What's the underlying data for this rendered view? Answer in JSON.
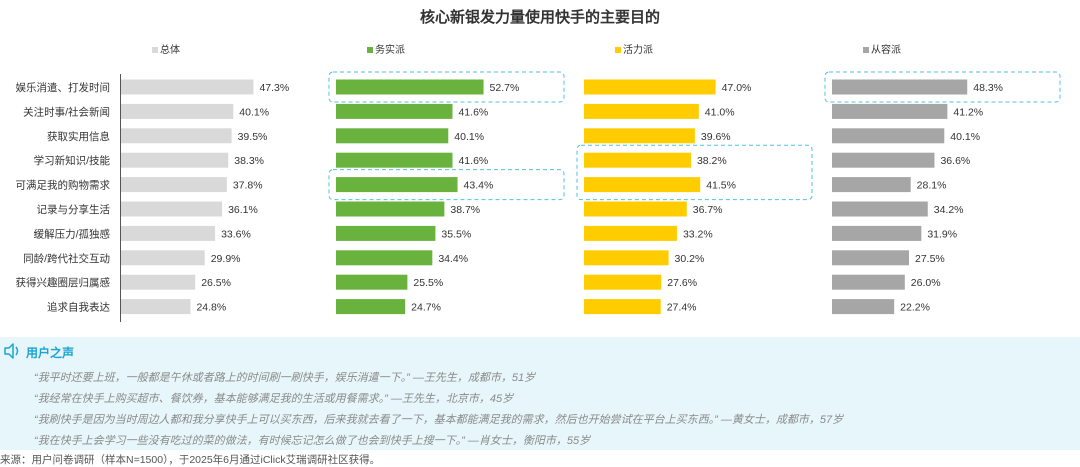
{
  "chart_data": {
    "type": "bar",
    "orientation": "horizontal",
    "title": "核心新银发力量使用快手的主要目的",
    "categories": [
      "娱乐消遣、打发时间",
      "关注时事/社会新闻",
      "获取实用信息",
      "学习新知识/技能",
      "可满足我的购物需求",
      "记录与分享生活",
      "缓解压力/孤独感",
      "同龄/跨代社交互动",
      "获得兴趣圈层归属感",
      "追求自我表达"
    ],
    "series": [
      {
        "name": "总体",
        "color": "#d9d9d9",
        "values": [
          47.3,
          40.1,
          39.5,
          38.3,
          37.8,
          36.1,
          33.6,
          29.9,
          26.5,
          24.8
        ]
      },
      {
        "name": "务实派",
        "color": "#6ab23e",
        "values": [
          52.7,
          41.6,
          40.1,
          41.6,
          43.4,
          38.7,
          35.5,
          34.4,
          25.5,
          24.7
        ]
      },
      {
        "name": "活力派",
        "color": "#ffcc00",
        "values": [
          47.0,
          41.0,
          39.6,
          38.2,
          41.5,
          36.7,
          33.2,
          30.2,
          27.6,
          27.4
        ]
      },
      {
        "name": "从容派",
        "color": "#a6a6a6",
        "values": [
          48.3,
          41.2,
          40.1,
          36.6,
          28.1,
          34.2,
          31.9,
          27.5,
          26.0,
          22.2
        ]
      }
    ],
    "value_suffix": "%",
    "highlights": [
      {
        "series": 1,
        "categories": [
          0
        ]
      },
      {
        "series": 3,
        "categories": [
          0
        ]
      },
      {
        "series": 2,
        "categories": [
          3,
          4
        ]
      },
      {
        "series": 1,
        "categories": [
          4
        ]
      }
    ],
    "highlight_color": "#4fc3e0"
  },
  "voice": {
    "title": "用户之声",
    "quotes": [
      "“我平时还要上班，一般都是午休或者路上的时间刷一刷快手，娱乐消遣一下。” —王先生，成都市，51岁",
      "“我经常在快手上购买超市、餐饮券，基本能够满足我的生活或用餐需求。” —王先生，北京市，45岁",
      "“我刷快手是因为当时周边人都和我分享快手上可以买东西，后来我就去看了一下，基本都能满足我的需求，然后也开始尝试在平台上买东西。” —黄女士，成都市，57岁",
      "“我在快手上会学习一些没有吃过的菜的做法，有时候忘记怎么做了也会到快手上搜一下。” —肖女士，衡阳市，55岁"
    ]
  },
  "source": "来源：用户问卷调研（样本N=1500），于2025年6月通过iClick艾瑞调研社区获得。"
}
